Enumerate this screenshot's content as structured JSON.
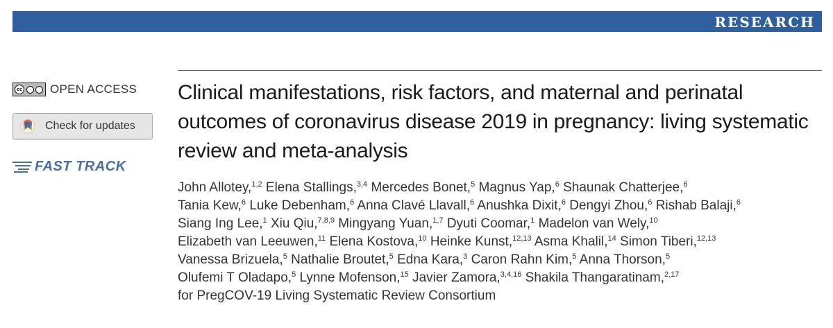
{
  "banner": {
    "label": "RESEARCH",
    "color": "#2f5f9c"
  },
  "sidebar": {
    "license_icons": [
      "cc-icon",
      "by-icon",
      "nc-icon"
    ],
    "license_text": [
      "cc",
      "BY",
      "NC"
    ],
    "open_access": "OPEN ACCESS",
    "check_updates": "Check for updates",
    "fast_track": "FAST TRACK"
  },
  "title": "Clinical manifestations, risk factors, and maternal and perinatal outcomes of coronavirus disease 2019 in pregnancy: living systematic review and meta-analysis",
  "author_lines": [
    [
      {
        "name": "John Allotey,",
        "sup": "1,2"
      },
      {
        "name": "Elena Stallings,",
        "sup": "3,4"
      },
      {
        "name": "Mercedes Bonet,",
        "sup": "5"
      },
      {
        "name": "Magnus Yap,",
        "sup": "6"
      },
      {
        "name": "Shaunak Chatterjee,",
        "sup": "6"
      }
    ],
    [
      {
        "name": "Tania Kew,",
        "sup": "6"
      },
      {
        "name": "Luke Debenham,",
        "sup": "6"
      },
      {
        "name": "Anna Clavé Llavall,",
        "sup": "6"
      },
      {
        "name": "Anushka Dixit,",
        "sup": "6"
      },
      {
        "name": "Dengyi Zhou,",
        "sup": "6"
      },
      {
        "name": "Rishab Balaji,",
        "sup": "6"
      }
    ],
    [
      {
        "name": "Siang Ing Lee,",
        "sup": "1"
      },
      {
        "name": "Xiu Qiu,",
        "sup": "7,8,9"
      },
      {
        "name": "Mingyang Yuan,",
        "sup": "1,7"
      },
      {
        "name": "Dyuti Coomar,",
        "sup": "1"
      },
      {
        "name": "Madelon van Wely,",
        "sup": "10"
      }
    ],
    [
      {
        "name": "Elizabeth van Leeuwen,",
        "sup": "11"
      },
      {
        "name": "Elena Kostova,",
        "sup": "10"
      },
      {
        "name": "Heinke Kunst,",
        "sup": "12,13"
      },
      {
        "name": "Asma Khalil,",
        "sup": "14"
      },
      {
        "name": "Simon Tiberi,",
        "sup": "12,13"
      }
    ],
    [
      {
        "name": "Vanessa Brizuela,",
        "sup": "5"
      },
      {
        "name": "Nathalie Broutet,",
        "sup": "5"
      },
      {
        "name": "Edna Kara,",
        "sup": "3"
      },
      {
        "name": "Caron Rahn Kim,",
        "sup": "5"
      },
      {
        "name": "Anna Thorson,",
        "sup": "5"
      }
    ],
    [
      {
        "name": "Olufemi T Oladapo,",
        "sup": "5"
      },
      {
        "name": "Lynne Mofenson,",
        "sup": "15"
      },
      {
        "name": "Javier Zamora,",
        "sup": "3,4,16"
      },
      {
        "name": "Shakila Thangaratinam,",
        "sup": "2,17"
      }
    ],
    [
      {
        "name": "for PregCOV-19 Living Systematic Review Consortium",
        "sup": ""
      }
    ]
  ]
}
